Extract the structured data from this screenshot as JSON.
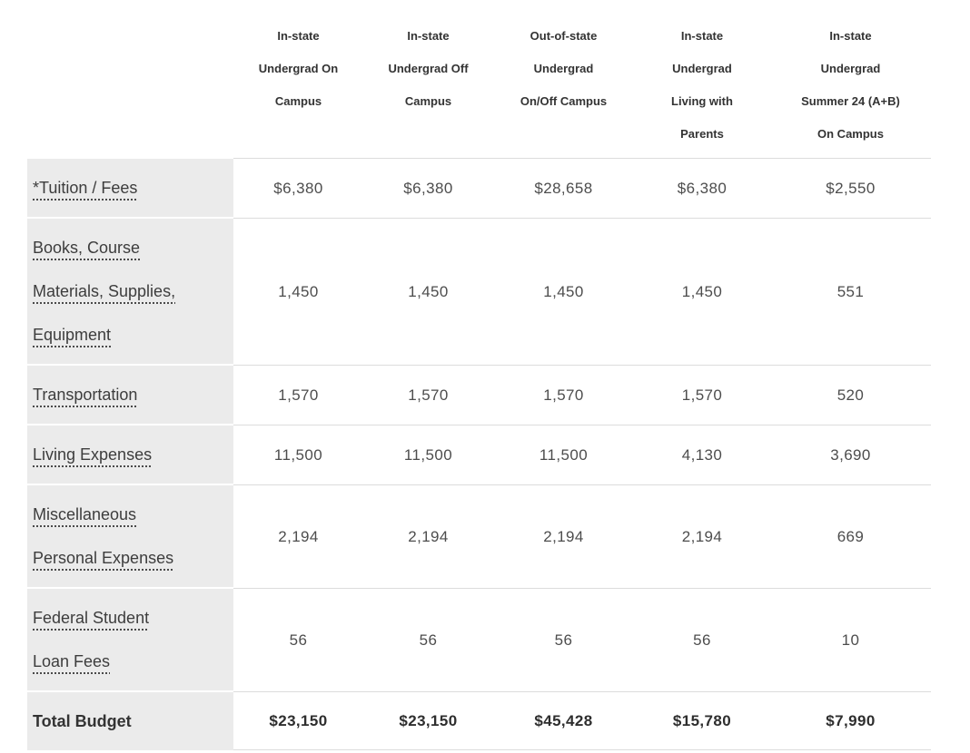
{
  "table": {
    "header": {
      "corner": "",
      "columns": [
        {
          "lines": [
            "In-state",
            "Undergrad On",
            "Campus"
          ]
        },
        {
          "lines": [
            "In-state",
            "Undergrad Off",
            "Campus"
          ]
        },
        {
          "lines": [
            "Out-of-state",
            "Undergrad",
            "On/Off Campus"
          ]
        },
        {
          "lines": [
            "In-state",
            "Undergrad",
            "Living with",
            "Parents"
          ]
        },
        {
          "lines": [
            "In-state",
            "Undergrad",
            "Summer 24 (A+B)",
            "On Campus"
          ]
        }
      ]
    },
    "rows": [
      {
        "label_lines": [
          "*Tuition / Fees"
        ],
        "underlined": true,
        "bold": false,
        "values": [
          "$6,380",
          "$6,380",
          "$28,658",
          "$6,380",
          "$2,550"
        ]
      },
      {
        "label_lines": [
          "Books, Course",
          "Materials, Supplies,",
          "Equipment"
        ],
        "underlined": true,
        "bold": false,
        "values": [
          "1,450",
          "1,450",
          "1,450",
          "1,450",
          "551"
        ]
      },
      {
        "label_lines": [
          "Transportation"
        ],
        "underlined": true,
        "bold": false,
        "values": [
          "1,570",
          "1,570",
          "1,570",
          "1,570",
          "520"
        ]
      },
      {
        "label_lines": [
          "Living Expenses"
        ],
        "underlined": true,
        "bold": false,
        "values": [
          "11,500",
          "11,500",
          "11,500",
          "4,130",
          "3,690"
        ]
      },
      {
        "label_lines": [
          "Miscellaneous",
          "Personal Expenses"
        ],
        "underlined": true,
        "bold": false,
        "values": [
          "2,194",
          "2,194",
          "2,194",
          "2,194",
          "669"
        ]
      },
      {
        "label_lines": [
          "Federal Student",
          "Loan Fees"
        ],
        "underlined": true,
        "bold": false,
        "values": [
          "56",
          "56",
          "56",
          "56",
          "10"
        ]
      },
      {
        "label_lines": [
          "Total Budget"
        ],
        "underlined": false,
        "bold": true,
        "values": [
          "$23,150",
          "$23,150",
          "$45,428",
          "$15,780",
          "$7,990"
        ]
      }
    ]
  },
  "colors": {
    "label_cell_background": "#ebebeb",
    "row_divider": "#dcdcdc",
    "text": "#3d3d3d"
  }
}
